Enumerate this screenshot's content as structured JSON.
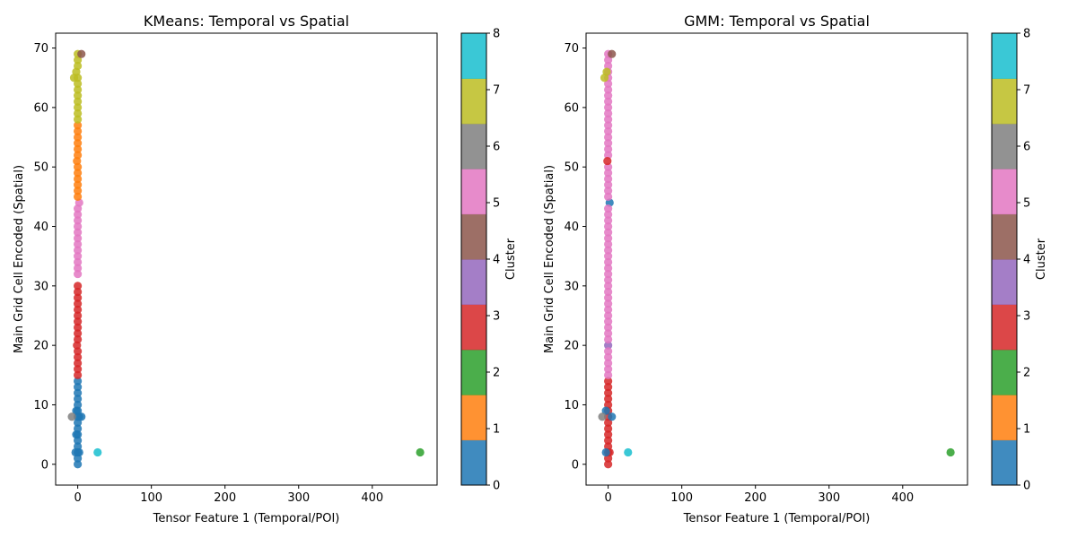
{
  "figure": {
    "background": "#ffffff"
  },
  "cluster_colors": [
    "#1f77b4",
    "#ff7f0e",
    "#2ca02c",
    "#d62728",
    "#9467bd",
    "#8c564b",
    "#e377c2",
    "#7f7f7f",
    "#bcbd22",
    "#17becf"
  ],
  "chart_data": [
    {
      "type": "scatter",
      "title": "KMeans: Temporal vs Spatial",
      "xlabel": "Tensor Feature 1 (Temporal/POI)",
      "ylabel": "Main Grid Cell Encoded (Spatial)",
      "xlim": [
        -30,
        488
      ],
      "ylim": [
        -3.5,
        72.5
      ],
      "xticks": [
        0,
        100,
        200,
        300,
        400
      ],
      "yticks": [
        0,
        10,
        20,
        30,
        40,
        50,
        60,
        70
      ],
      "grid": false,
      "colorbar": {
        "label": "Cluster",
        "range": [
          0,
          8
        ],
        "ticks": [
          0,
          1,
          2,
          3,
          4,
          5,
          6,
          7,
          8
        ],
        "colormap": "tab10",
        "alpha": 0.85
      },
      "points": [
        {
          "x": 0,
          "y": 0,
          "cluster": 0
        },
        {
          "x": 0,
          "y": 1,
          "cluster": 0
        },
        {
          "x": 0,
          "y": 2,
          "cluster": 0
        },
        {
          "x": -3,
          "y": 2,
          "cluster": 0
        },
        {
          "x": 2,
          "y": 2,
          "cluster": 0
        },
        {
          "x": 0,
          "y": 3,
          "cluster": 0
        },
        {
          "x": 0,
          "y": 4,
          "cluster": 0
        },
        {
          "x": 0,
          "y": 5,
          "cluster": 0
        },
        {
          "x": -2,
          "y": 5,
          "cluster": 0
        },
        {
          "x": 0,
          "y": 6,
          "cluster": 0
        },
        {
          "x": 0,
          "y": 7,
          "cluster": 0
        },
        {
          "x": 0,
          "y": 8,
          "cluster": 0
        },
        {
          "x": 2,
          "y": 8,
          "cluster": 0
        },
        {
          "x": 5,
          "y": 8,
          "cluster": 0
        },
        {
          "x": -2,
          "y": 9,
          "cluster": 0
        },
        {
          "x": 0,
          "y": 9,
          "cluster": 0
        },
        {
          "x": 0,
          "y": 10,
          "cluster": 0
        },
        {
          "x": 0,
          "y": 11,
          "cluster": 0
        },
        {
          "x": 0,
          "y": 12,
          "cluster": 0
        },
        {
          "x": 0,
          "y": 13,
          "cluster": 0
        },
        {
          "x": 0,
          "y": 14,
          "cluster": 0
        },
        {
          "x": -8,
          "y": 8,
          "cluster": 7
        },
        {
          "x": 27,
          "y": 2,
          "cluster": 9
        },
        {
          "x": 465,
          "y": 2,
          "cluster": 2
        },
        {
          "x": 0,
          "y": 15,
          "cluster": 3
        },
        {
          "x": 0,
          "y": 16,
          "cluster": 3
        },
        {
          "x": 0,
          "y": 17,
          "cluster": 3
        },
        {
          "x": 0,
          "y": 18,
          "cluster": 3
        },
        {
          "x": 0,
          "y": 19,
          "cluster": 3
        },
        {
          "x": -1,
          "y": 20,
          "cluster": 3
        },
        {
          "x": 0,
          "y": 21,
          "cluster": 3
        },
        {
          "x": 0,
          "y": 22,
          "cluster": 3
        },
        {
          "x": 0,
          "y": 23,
          "cluster": 3
        },
        {
          "x": 0,
          "y": 24,
          "cluster": 3
        },
        {
          "x": 0,
          "y": 25,
          "cluster": 3
        },
        {
          "x": 0,
          "y": 26,
          "cluster": 3
        },
        {
          "x": 0,
          "y": 27,
          "cluster": 3
        },
        {
          "x": 0,
          "y": 28,
          "cluster": 3
        },
        {
          "x": 0,
          "y": 29,
          "cluster": 3
        },
        {
          "x": 0,
          "y": 30,
          "cluster": 3
        },
        {
          "x": 0,
          "y": 32,
          "cluster": 6
        },
        {
          "x": 0,
          "y": 33,
          "cluster": 6
        },
        {
          "x": 0,
          "y": 34,
          "cluster": 6
        },
        {
          "x": 0,
          "y": 35,
          "cluster": 6
        },
        {
          "x": 0,
          "y": 36,
          "cluster": 6
        },
        {
          "x": 0,
          "y": 37,
          "cluster": 6
        },
        {
          "x": 0,
          "y": 38,
          "cluster": 6
        },
        {
          "x": 0,
          "y": 39,
          "cluster": 6
        },
        {
          "x": 0,
          "y": 40,
          "cluster": 6
        },
        {
          "x": 0,
          "y": 41,
          "cluster": 6
        },
        {
          "x": 0,
          "y": 42,
          "cluster": 6
        },
        {
          "x": 0,
          "y": 43,
          "cluster": 6
        },
        {
          "x": 2,
          "y": 44,
          "cluster": 6
        },
        {
          "x": 0,
          "y": 45,
          "cluster": 1
        },
        {
          "x": 0,
          "y": 46,
          "cluster": 1
        },
        {
          "x": 0,
          "y": 47,
          "cluster": 1
        },
        {
          "x": 0,
          "y": 48,
          "cluster": 1
        },
        {
          "x": 0,
          "y": 49,
          "cluster": 1
        },
        {
          "x": 0,
          "y": 50,
          "cluster": 1
        },
        {
          "x": -1,
          "y": 51,
          "cluster": 1
        },
        {
          "x": 0,
          "y": 52,
          "cluster": 1
        },
        {
          "x": 0,
          "y": 53,
          "cluster": 1
        },
        {
          "x": 0,
          "y": 54,
          "cluster": 1
        },
        {
          "x": 0,
          "y": 55,
          "cluster": 1
        },
        {
          "x": 0,
          "y": 56,
          "cluster": 1
        },
        {
          "x": 0,
          "y": 57,
          "cluster": 1
        },
        {
          "x": 0,
          "y": 58,
          "cluster": 8
        },
        {
          "x": 0,
          "y": 59,
          "cluster": 8
        },
        {
          "x": 0,
          "y": 60,
          "cluster": 8
        },
        {
          "x": 0,
          "y": 61,
          "cluster": 8
        },
        {
          "x": 0,
          "y": 62,
          "cluster": 8
        },
        {
          "x": 0,
          "y": 63,
          "cluster": 8
        },
        {
          "x": 0,
          "y": 64,
          "cluster": 8
        },
        {
          "x": -5,
          "y": 65,
          "cluster": 8
        },
        {
          "x": 0,
          "y": 65,
          "cluster": 8
        },
        {
          "x": -2,
          "y": 66,
          "cluster": 8
        },
        {
          "x": 0,
          "y": 67,
          "cluster": 8
        },
        {
          "x": 0,
          "y": 68,
          "cluster": 8
        },
        {
          "x": 0,
          "y": 69,
          "cluster": 8
        },
        {
          "x": 5,
          "y": 69,
          "cluster": 5
        }
      ]
    },
    {
      "type": "scatter",
      "title": "GMM: Temporal vs Spatial",
      "xlabel": "Tensor Feature 1 (Temporal/POI)",
      "ylabel": "Main Grid Cell Encoded (Spatial)",
      "xlim": [
        -30,
        488
      ],
      "ylim": [
        -3.5,
        72.5
      ],
      "xticks": [
        0,
        100,
        200,
        300,
        400
      ],
      "yticks": [
        0,
        10,
        20,
        30,
        40,
        50,
        60,
        70
      ],
      "grid": false,
      "colorbar": {
        "label": "Cluster",
        "range": [
          0,
          8
        ],
        "ticks": [
          0,
          1,
          2,
          3,
          4,
          5,
          6,
          7,
          8
        ],
        "colormap": "tab10",
        "alpha": 0.85
      },
      "points": [
        {
          "x": 0,
          "y": 0,
          "cluster": 3
        },
        {
          "x": 0,
          "y": 1,
          "cluster": 3
        },
        {
          "x": 0,
          "y": 2,
          "cluster": 3
        },
        {
          "x": 2,
          "y": 2,
          "cluster": 3
        },
        {
          "x": 0,
          "y": 3,
          "cluster": 3
        },
        {
          "x": 0,
          "y": 4,
          "cluster": 3
        },
        {
          "x": 0,
          "y": 5,
          "cluster": 3
        },
        {
          "x": 0,
          "y": 6,
          "cluster": 3
        },
        {
          "x": 0,
          "y": 7,
          "cluster": 3
        },
        {
          "x": 0,
          "y": 8,
          "cluster": 3
        },
        {
          "x": 0,
          "y": 9,
          "cluster": 3
        },
        {
          "x": 0,
          "y": 10,
          "cluster": 3
        },
        {
          "x": 0,
          "y": 11,
          "cluster": 3
        },
        {
          "x": 0,
          "y": 12,
          "cluster": 3
        },
        {
          "x": 0,
          "y": 13,
          "cluster": 3
        },
        {
          "x": 0,
          "y": 14,
          "cluster": 3
        },
        {
          "x": -3,
          "y": 2,
          "cluster": 0
        },
        {
          "x": -3,
          "y": 9,
          "cluster": 0
        },
        {
          "x": 5,
          "y": 8,
          "cluster": 0
        },
        {
          "x": 2,
          "y": 44,
          "cluster": 0
        },
        {
          "x": -8,
          "y": 8,
          "cluster": 7
        },
        {
          "x": 27,
          "y": 2,
          "cluster": 9
        },
        {
          "x": 465,
          "y": 2,
          "cluster": 2
        },
        {
          "x": 0,
          "y": 20,
          "cluster": 4
        },
        {
          "x": 0,
          "y": 15,
          "cluster": 6
        },
        {
          "x": 0,
          "y": 16,
          "cluster": 6
        },
        {
          "x": 0,
          "y": 17,
          "cluster": 6
        },
        {
          "x": 0,
          "y": 18,
          "cluster": 6
        },
        {
          "x": 0,
          "y": 19,
          "cluster": 6
        },
        {
          "x": 0,
          "y": 21,
          "cluster": 6
        },
        {
          "x": 0,
          "y": 22,
          "cluster": 6
        },
        {
          "x": 0,
          "y": 23,
          "cluster": 6
        },
        {
          "x": 0,
          "y": 24,
          "cluster": 6
        },
        {
          "x": 0,
          "y": 25,
          "cluster": 6
        },
        {
          "x": 0,
          "y": 26,
          "cluster": 6
        },
        {
          "x": 0,
          "y": 27,
          "cluster": 6
        },
        {
          "x": 0,
          "y": 28,
          "cluster": 6
        },
        {
          "x": 0,
          "y": 29,
          "cluster": 6
        },
        {
          "x": 0,
          "y": 30,
          "cluster": 6
        },
        {
          "x": 0,
          "y": 31,
          "cluster": 6
        },
        {
          "x": 0,
          "y": 32,
          "cluster": 6
        },
        {
          "x": 0,
          "y": 33,
          "cluster": 6
        },
        {
          "x": 0,
          "y": 34,
          "cluster": 6
        },
        {
          "x": 0,
          "y": 35,
          "cluster": 6
        },
        {
          "x": 0,
          "y": 36,
          "cluster": 6
        },
        {
          "x": 0,
          "y": 37,
          "cluster": 6
        },
        {
          "x": 0,
          "y": 38,
          "cluster": 6
        },
        {
          "x": 0,
          "y": 39,
          "cluster": 6
        },
        {
          "x": 0,
          "y": 40,
          "cluster": 6
        },
        {
          "x": 0,
          "y": 41,
          "cluster": 6
        },
        {
          "x": 0,
          "y": 42,
          "cluster": 6
        },
        {
          "x": 0,
          "y": 43,
          "cluster": 6
        },
        {
          "x": 0,
          "y": 45,
          "cluster": 6
        },
        {
          "x": 0,
          "y": 46,
          "cluster": 6
        },
        {
          "x": 0,
          "y": 47,
          "cluster": 6
        },
        {
          "x": 0,
          "y": 48,
          "cluster": 6
        },
        {
          "x": 0,
          "y": 49,
          "cluster": 6
        },
        {
          "x": 0,
          "y": 50,
          "cluster": 6
        },
        {
          "x": 0,
          "y": 52,
          "cluster": 6
        },
        {
          "x": 0,
          "y": 53,
          "cluster": 6
        },
        {
          "x": 0,
          "y": 54,
          "cluster": 6
        },
        {
          "x": 0,
          "y": 55,
          "cluster": 6
        },
        {
          "x": 0,
          "y": 56,
          "cluster": 6
        },
        {
          "x": 0,
          "y": 57,
          "cluster": 6
        },
        {
          "x": 0,
          "y": 58,
          "cluster": 6
        },
        {
          "x": 0,
          "y": 59,
          "cluster": 6
        },
        {
          "x": 0,
          "y": 60,
          "cluster": 6
        },
        {
          "x": 0,
          "y": 61,
          "cluster": 6
        },
        {
          "x": 0,
          "y": 62,
          "cluster": 6
        },
        {
          "x": 0,
          "y": 63,
          "cluster": 6
        },
        {
          "x": 0,
          "y": 64,
          "cluster": 6
        },
        {
          "x": 0,
          "y": 65,
          "cluster": 6
        },
        {
          "x": 0,
          "y": 66,
          "cluster": 6
        },
        {
          "x": 0,
          "y": 67,
          "cluster": 6
        },
        {
          "x": 0,
          "y": 68,
          "cluster": 6
        },
        {
          "x": 0,
          "y": 69,
          "cluster": 6
        },
        {
          "x": -1,
          "y": 51,
          "cluster": 3
        },
        {
          "x": -5,
          "y": 65,
          "cluster": 8
        },
        {
          "x": -2,
          "y": 66,
          "cluster": 8
        },
        {
          "x": 5,
          "y": 69,
          "cluster": 5
        }
      ]
    }
  ]
}
